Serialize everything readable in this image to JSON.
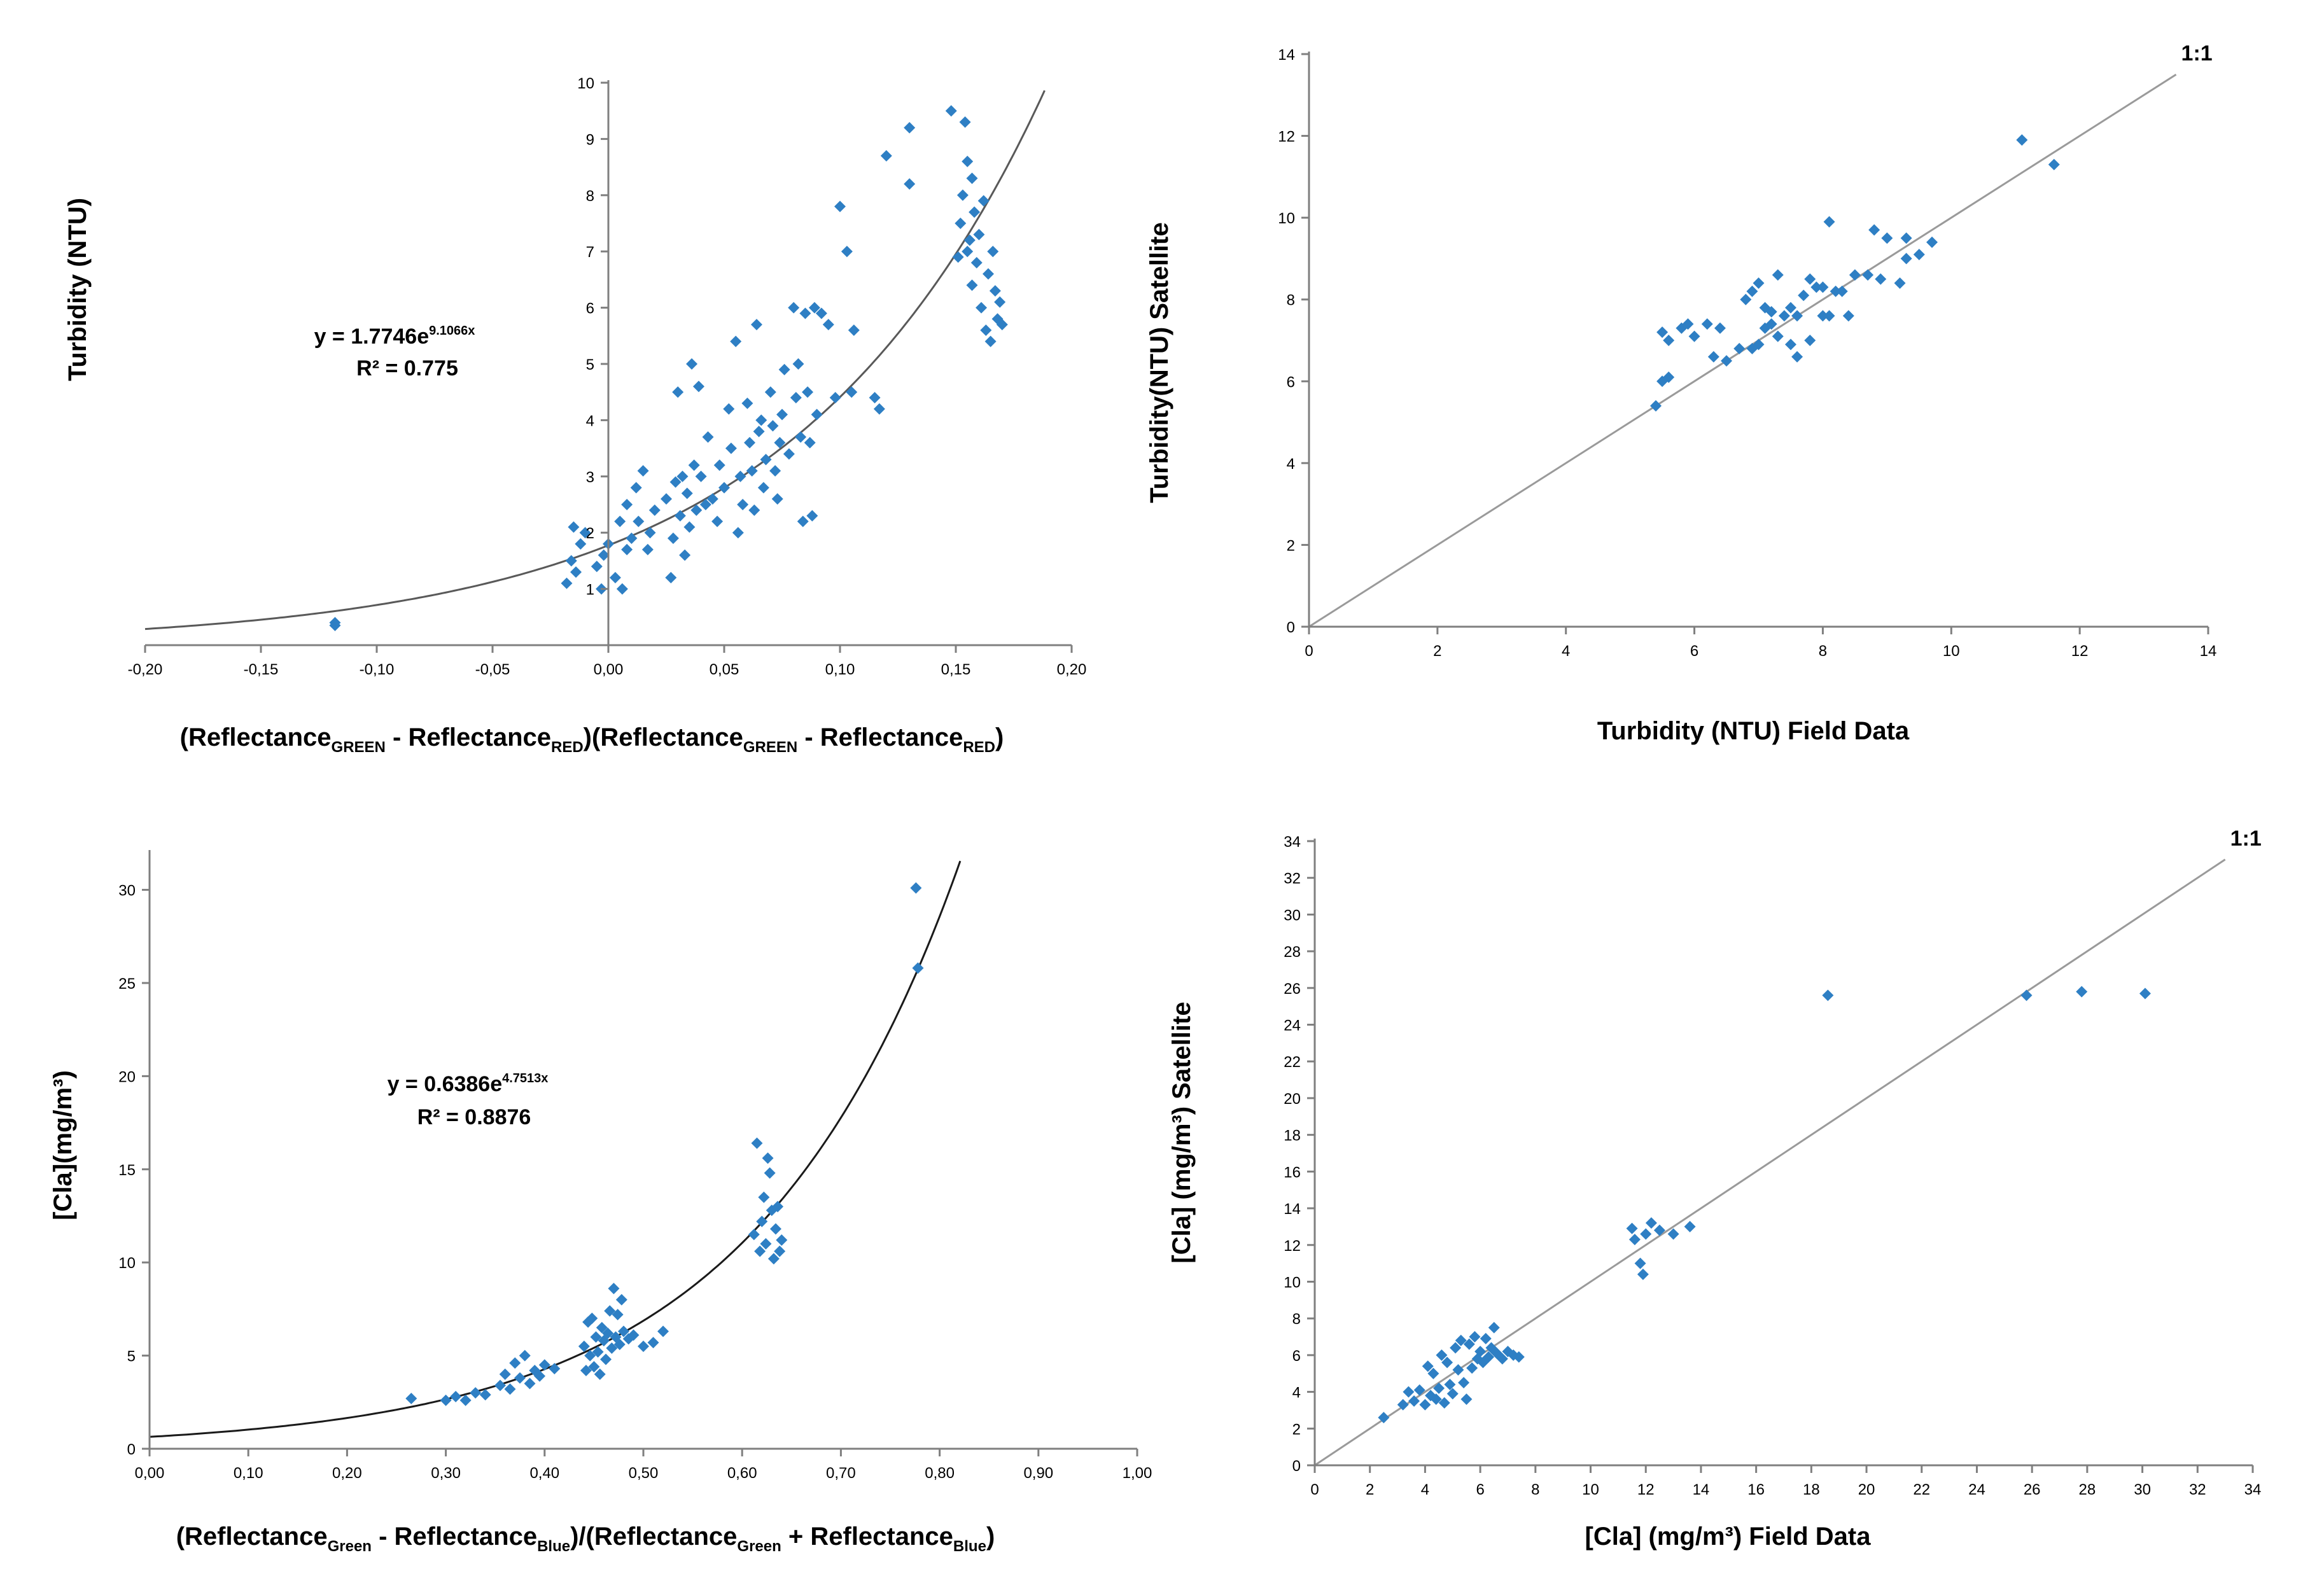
{
  "chart_data": [
    {
      "id": "turbidity-regression",
      "type": "scatter",
      "xlabel": "(ReflectanceGREEN - ReflectanceRED)(ReflectanceGREEN - ReflectanceRED)",
      "xlabel_parts": {
        "p1": "(Reflectance",
        "s1": "GREEN",
        "p2": " - Reflectance",
        "s2": "RED",
        "p3": ")(Reflectance",
        "s3": "GREEN",
        "p4": " - Reflectance",
        "s4": "RED",
        "p5": ")"
      },
      "ylabel": "Turbidity (NTU)",
      "xlim": [
        -0.2,
        0.2
      ],
      "ylim": [
        0,
        10
      ],
      "xticks": [
        -0.2,
        -0.15,
        -0.1,
        -0.05,
        0,
        0.05,
        0.1,
        0.15,
        0.2
      ],
      "xtick_labels": [
        "-0,20",
        "-0,15",
        "-0,10",
        "-0,05",
        "0,00",
        "0,05",
        "0,10",
        "0,15",
        "0,20"
      ],
      "yticks": [
        1,
        2,
        3,
        4,
        5,
        6,
        7,
        8,
        9,
        10
      ],
      "ytick_labels": [
        "1",
        "2",
        "3",
        "4",
        "5",
        "6",
        "7",
        "8",
        "9",
        "10"
      ],
      "equation": "y = 1.7746e",
      "equation_exp": "9.1066x",
      "r2": "R² = 0.775",
      "fit": {
        "a": 1.7746,
        "b": 9.1066
      },
      "series": [
        {
          "name": "Turbidity",
          "x": [
            -0.118,
            -0.118,
            -0.018,
            -0.016,
            -0.015,
            -0.014,
            -0.012,
            -0.01,
            -0.005,
            -0.003,
            -0.002,
            0,
            0.003,
            0.005,
            0.006,
            0.008,
            0.008,
            0.01,
            0.012,
            0.013,
            0.015,
            0.017,
            0.018,
            0.02,
            0.025,
            0.027,
            0.028,
            0.029,
            0.03,
            0.031,
            0.032,
            0.033,
            0.034,
            0.035,
            0.036,
            0.037,
            0.038,
            0.039,
            0.04,
            0.042,
            0.043,
            0.045,
            0.047,
            0.048,
            0.05,
            0.052,
            0.053,
            0.055,
            0.056,
            0.057,
            0.058,
            0.06,
            0.061,
            0.062,
            0.063,
            0.064,
            0.065,
            0.066,
            0.067,
            0.068,
            0.07,
            0.071,
            0.072,
            0.073,
            0.074,
            0.075,
            0.076,
            0.078,
            0.08,
            0.081,
            0.082,
            0.083,
            0.084,
            0.085,
            0.086,
            0.087,
            0.088,
            0.089,
            0.09,
            0.092,
            0.095,
            0.098,
            0.1,
            0.103,
            0.105,
            0.106,
            0.115,
            0.117,
            0.12,
            0.13,
            0.13,
            0.148,
            0.151,
            0.152,
            0.153,
            0.154,
            0.155,
            0.155,
            0.156,
            0.157,
            0.157,
            0.158,
            0.159,
            0.16,
            0.161,
            0.162,
            0.163,
            0.164,
            0.165,
            0.166,
            0.167,
            0.168,
            0.169,
            0.17
          ],
          "y": [
            0.35,
            0.4,
            1.1,
            1.5,
            2.1,
            1.3,
            1.8,
            2.0,
            1.4,
            1.0,
            1.6,
            1.8,
            1.2,
            2.2,
            1.0,
            1.7,
            2.5,
            1.9,
            2.8,
            2.2,
            3.1,
            1.7,
            2.0,
            2.4,
            2.6,
            1.2,
            1.9,
            2.9,
            4.5,
            2.3,
            3.0,
            1.6,
            2.7,
            2.1,
            5.0,
            3.2,
            2.4,
            4.6,
            3.0,
            2.5,
            3.7,
            2.6,
            2.2,
            3.2,
            2.8,
            4.2,
            3.5,
            5.4,
            2.0,
            3.0,
            2.5,
            4.3,
            3.6,
            3.1,
            2.4,
            5.7,
            3.8,
            4.0,
            2.8,
            3.3,
            4.5,
            3.9,
            3.1,
            2.6,
            3.6,
            4.1,
            4.9,
            3.4,
            6.0,
            4.4,
            5.0,
            3.7,
            2.2,
            5.9,
            4.5,
            3.6,
            2.3,
            6.0,
            4.1,
            5.9,
            5.7,
            4.4,
            7.8,
            7.0,
            4.5,
            5.6,
            4.4,
            4.2,
            8.7,
            9.2,
            8.2,
            9.5,
            6.9,
            7.5,
            8.0,
            9.3,
            7.0,
            8.6,
            7.2,
            8.3,
            6.4,
            7.7,
            6.8,
            7.3,
            6.0,
            7.9,
            5.6,
            6.6,
            5.4,
            7.0,
            6.3,
            5.8,
            6.1,
            5.7
          ]
        }
      ]
    },
    {
      "id": "turbidity-validation",
      "type": "scatter",
      "xlabel": "Turbidity (NTU) Field Data",
      "ylabel": "Turbidity(NTU) Satellite",
      "xlim": [
        0,
        14
      ],
      "ylim": [
        0,
        14
      ],
      "xticks": [
        0,
        2,
        4,
        6,
        8,
        10,
        12,
        14
      ],
      "xtick_labels": [
        "0",
        "2",
        "4",
        "6",
        "8",
        "10",
        "12",
        "14"
      ],
      "yticks": [
        0,
        2,
        4,
        6,
        8,
        10,
        12,
        14
      ],
      "ytick_labels": [
        "0",
        "2",
        "4",
        "6",
        "8",
        "10",
        "12",
        "14"
      ],
      "line_label": "1:1",
      "line_end": 13.5,
      "series": [
        {
          "name": "Turbidity",
          "x": [
            5.4,
            5.5,
            5.5,
            5.6,
            5.6,
            5.8,
            5.9,
            6.0,
            6.2,
            6.3,
            6.4,
            6.5,
            6.7,
            6.8,
            6.9,
            6.9,
            7.0,
            7.0,
            7.1,
            7.1,
            7.2,
            7.2,
            7.3,
            7.3,
            7.4,
            7.5,
            7.5,
            7.6,
            7.6,
            7.7,
            7.8,
            7.8,
            7.9,
            8.0,
            8.0,
            8.1,
            8.1,
            8.2,
            8.3,
            8.4,
            8.5,
            8.7,
            8.8,
            8.9,
            9.0,
            9.2,
            9.3,
            9.3,
            9.5,
            9.7,
            11.1,
            11.6
          ],
          "y": [
            5.4,
            6.0,
            7.2,
            6.1,
            7.0,
            7.3,
            7.4,
            7.1,
            7.4,
            6.6,
            7.3,
            6.5,
            6.8,
            8.0,
            6.8,
            8.2,
            8.4,
            6.9,
            7.3,
            7.8,
            7.7,
            7.4,
            8.6,
            7.1,
            7.6,
            7.8,
            6.9,
            7.6,
            6.6,
            8.1,
            8.5,
            7.0,
            8.3,
            7.6,
            8.3,
            9.9,
            7.6,
            8.2,
            8.2,
            7.6,
            8.6,
            8.6,
            9.7,
            8.5,
            9.5,
            8.4,
            9.0,
            9.5,
            9.1,
            9.4,
            11.9,
            11.3
          ]
        }
      ]
    },
    {
      "id": "chlorophyll-regression",
      "type": "scatter",
      "xlabel": "(ReflectanceGreen - ReflectanceBlue)/(ReflectanceGreen + ReflectanceBlue)",
      "xlabel_parts": {
        "p1": "(Reflectance",
        "s1": "Green",
        "p2": " - Reflectance",
        "s2": "Blue",
        "p3": ")/(Reflectance",
        "s3": "Green",
        "p4": " + Reflectance",
        "s4": "Blue",
        "p5": ")"
      },
      "ylabel": "[Cla](mg/m³)",
      "xlim": [
        0,
        1
      ],
      "ylim": [
        0,
        32
      ],
      "xticks": [
        0,
        0.1,
        0.2,
        0.3,
        0.4,
        0.5,
        0.6,
        0.7,
        0.8,
        0.9,
        1.0
      ],
      "xtick_labels": [
        "0,00",
        "0,10",
        "0,20",
        "0,30",
        "0,40",
        "0,50",
        "0,60",
        "0,70",
        "0,80",
        "0,90",
        "1,00"
      ],
      "yticks": [
        0,
        5,
        10,
        15,
        20,
        25,
        30
      ],
      "ytick_labels": [
        "0",
        "5",
        "10",
        "15",
        "20",
        "25",
        "30"
      ],
      "equation": "y = 0.6386e",
      "equation_exp": "4.7513x",
      "r2": "R² = 0.8876",
      "fit": {
        "a": 0.6386,
        "b": 4.7513
      },
      "series": [
        {
          "name": "Cla",
          "x": [
            0.265,
            0.3,
            0.31,
            0.32,
            0.33,
            0.34,
            0.355,
            0.36,
            0.365,
            0.37,
            0.375,
            0.38,
            0.385,
            0.39,
            0.395,
            0.4,
            0.41,
            0.44,
            0.442,
            0.444,
            0.446,
            0.448,
            0.45,
            0.452,
            0.454,
            0.456,
            0.458,
            0.46,
            0.462,
            0.464,
            0.466,
            0.468,
            0.47,
            0.472,
            0.474,
            0.476,
            0.478,
            0.48,
            0.485,
            0.49,
            0.5,
            0.51,
            0.52,
            0.612,
            0.615,
            0.618,
            0.62,
            0.622,
            0.624,
            0.626,
            0.628,
            0.63,
            0.632,
            0.634,
            0.636,
            0.638,
            0.64,
            0.776,
            0.778
          ],
          "y": [
            2.7,
            2.6,
            2.8,
            2.6,
            3.0,
            2.9,
            3.4,
            4.0,
            3.2,
            4.6,
            3.8,
            5.0,
            3.5,
            4.2,
            3.9,
            4.5,
            4.3,
            5.5,
            4.2,
            6.8,
            5.0,
            7.0,
            4.4,
            6.0,
            5.2,
            4.0,
            6.5,
            5.8,
            4.8,
            6.2,
            7.4,
            5.4,
            8.6,
            6.0,
            7.2,
            5.6,
            8.0,
            6.3,
            5.9,
            6.1,
            5.5,
            5.7,
            6.3,
            11.5,
            16.4,
            10.6,
            12.2,
            13.5,
            11.0,
            15.6,
            14.8,
            12.8,
            10.2,
            11.8,
            13.0,
            10.6,
            11.2,
            30.1,
            25.8
          ]
        }
      ]
    },
    {
      "id": "chlorophyll-validation",
      "type": "scatter",
      "xlabel": "[Cla] (mg/m³) Field Data",
      "ylabel": "[Cla] (mg/m³) Satellite",
      "xlim": [
        0,
        34
      ],
      "ylim": [
        0,
        34
      ],
      "xticks": [
        0,
        2,
        4,
        6,
        8,
        10,
        12,
        14,
        16,
        18,
        20,
        22,
        24,
        26,
        28,
        30,
        32,
        34
      ],
      "xtick_labels": [
        "0",
        "2",
        "4",
        "6",
        "8",
        "10",
        "12",
        "14",
        "16",
        "18",
        "20",
        "22",
        "24",
        "26",
        "28",
        "30",
        "32",
        "34"
      ],
      "yticks": [
        0,
        2,
        4,
        6,
        8,
        10,
        12,
        14,
        16,
        18,
        20,
        22,
        24,
        26,
        28,
        30,
        32,
        34
      ],
      "ytick_labels": [
        "0",
        "2",
        "4",
        "6",
        "8",
        "10",
        "12",
        "14",
        "16",
        "18",
        "20",
        "22",
        "24",
        "26",
        "28",
        "30",
        "32",
        "34"
      ],
      "line_label": "1:1",
      "line_end": 33,
      "series": [
        {
          "name": "Cla",
          "x": [
            2.5,
            3.2,
            3.4,
            3.6,
            3.8,
            4.0,
            4.1,
            4.2,
            4.3,
            4.4,
            4.5,
            4.6,
            4.7,
            4.8,
            4.9,
            5.0,
            5.1,
            5.2,
            5.3,
            5.4,
            5.5,
            5.6,
            5.7,
            5.8,
            5.9,
            6.0,
            6.1,
            6.2,
            6.3,
            6.4,
            6.5,
            6.6,
            6.8,
            7.0,
            7.2,
            7.4,
            11.5,
            11.6,
            11.8,
            11.9,
            12.0,
            12.2,
            12.5,
            13.0,
            13.6,
            18.6,
            25.8,
            27.8,
            30.1
          ],
          "y": [
            2.6,
            3.3,
            4.0,
            3.5,
            4.1,
            3.3,
            5.4,
            3.8,
            5.0,
            3.6,
            4.2,
            6.0,
            3.4,
            5.6,
            4.4,
            3.9,
            6.4,
            5.2,
            6.8,
            4.5,
            3.6,
            6.6,
            5.3,
            7.0,
            5.8,
            6.2,
            5.6,
            6.9,
            5.9,
            6.4,
            7.5,
            6.1,
            5.8,
            6.2,
            6.0,
            5.9,
            12.9,
            12.3,
            11.0,
            10.4,
            12.6,
            13.2,
            12.8,
            12.6,
            13.0,
            25.6,
            25.6,
            25.8,
            25.7
          ]
        }
      ]
    }
  ]
}
